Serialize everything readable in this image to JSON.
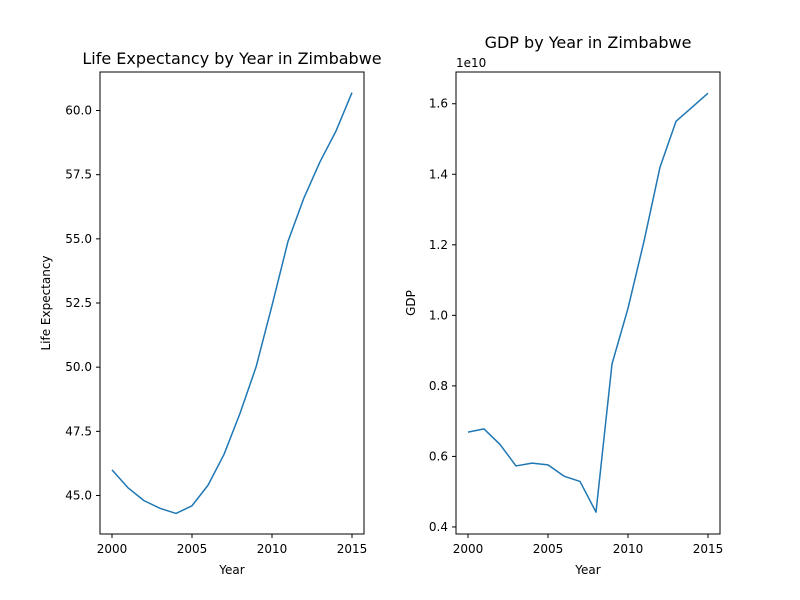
{
  "chart_data": [
    {
      "type": "line",
      "title": "Life Expectancy by Year in Zimbabwe",
      "xlabel": "Year",
      "ylabel": "Life Expectancy",
      "xlim": [
        1999.25,
        2015.75
      ],
      "ylim": [
        43.5,
        61.5
      ],
      "xticks": [
        2000,
        2005,
        2010,
        2015
      ],
      "xtick_labels": [
        "2000",
        "2005",
        "2010",
        "2015"
      ],
      "yticks": [
        45.0,
        47.5,
        50.0,
        52.5,
        55.0,
        57.5,
        60.0
      ],
      "ytick_labels": [
        "45.0",
        "47.5",
        "50.0",
        "52.5",
        "55.0",
        "57.5",
        "60.0"
      ],
      "offset_text": "",
      "color": "#1f77b4",
      "x": [
        2000,
        2001,
        2002,
        2003,
        2004,
        2005,
        2006,
        2007,
        2008,
        2009,
        2010,
        2011,
        2012,
        2013,
        2014,
        2015
      ],
      "values": [
        46.0,
        45.3,
        44.8,
        44.5,
        44.3,
        44.6,
        45.4,
        46.6,
        48.2,
        50.0,
        52.4,
        54.9,
        56.6,
        58.0,
        59.2,
        60.7
      ]
    },
    {
      "type": "line",
      "title": "GDP by Year in Zimbabwe",
      "xlabel": "Year",
      "ylabel": "GDP",
      "xlim": [
        1999.25,
        2015.75
      ],
      "ylim": [
        3800000000.0,
        16900000000.0
      ],
      "xticks": [
        2000,
        2005,
        2010,
        2015
      ],
      "xtick_labels": [
        "2000",
        "2005",
        "2010",
        "2015"
      ],
      "yticks": [
        4000000000.0,
        6000000000.0,
        8000000000.0,
        10000000000.0,
        12000000000.0,
        14000000000.0,
        16000000000.0
      ],
      "ytick_labels": [
        "0.4",
        "0.6",
        "0.8",
        "1.0",
        "1.2",
        "1.4",
        "1.6"
      ],
      "offset_text": "1e10",
      "color": "#1f77b4",
      "x": [
        2000,
        2001,
        2002,
        2003,
        2004,
        2005,
        2006,
        2007,
        2008,
        2009,
        2010,
        2011,
        2012,
        2013,
        2014,
        2015
      ],
      "values": [
        6690000000.0,
        6780000000.0,
        6340000000.0,
        5730000000.0,
        5810000000.0,
        5760000000.0,
        5440000000.0,
        5290000000.0,
        4420000000.0,
        8620000000.0,
        10200000000.0,
        12100000000.0,
        14200000000.0,
        15500000000.0,
        15900000000.0,
        16300000000.0
      ]
    }
  ]
}
